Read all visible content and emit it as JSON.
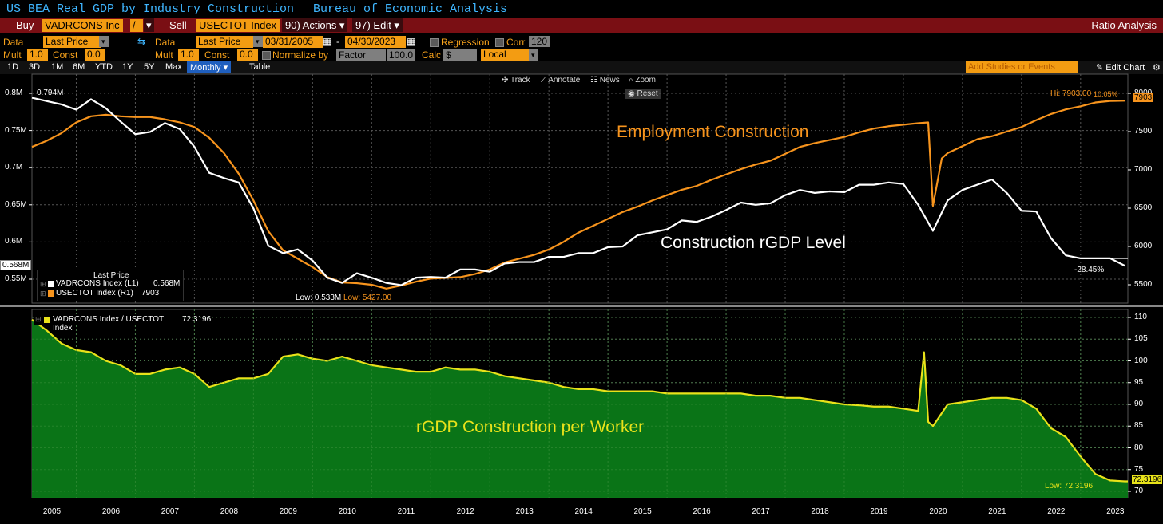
{
  "title": {
    "left": "US BEA Real GDP by Industry  Construction",
    "right": "Bureau of Economic Analysis"
  },
  "toolbar": {
    "buy": "Buy",
    "ticker1": "VADRCONS Inc",
    "op": "/",
    "sell": "Sell",
    "ticker2": "USECTOT Index",
    "actions": "90) Actions ▾",
    "edit": "97) Edit ▾",
    "ratio": "Ratio Analysis"
  },
  "params": {
    "data_label": "Data",
    "data_value": "Last Price",
    "data2_label": "Data",
    "data2_value": "Last Price",
    "date_from": "03/31/2005",
    "dash": "-",
    "date_to": "04/30/2023",
    "regression": "Regression",
    "corr": "Corr",
    "corr_value": "120",
    "mult_label": "Mult",
    "mult_value": "1.0",
    "const_label": "Const",
    "const_value": "0.0",
    "mult2_label": "Mult",
    "mult2_value": "1.0",
    "const2_label": "Const",
    "const2_value": "0.0",
    "normalize": "Normalize by",
    "factor": "Factor",
    "factor_value": "100.0",
    "calc": "Calc",
    "calc_value": "$",
    "local": "Local"
  },
  "periods": [
    "1D",
    "3D",
    "1M",
    "6M",
    "YTD",
    "1Y",
    "5Y",
    "Max"
  ],
  "freq": "Monthly ▾",
  "table": "Table",
  "studies": "Add Studies or Events",
  "edit_chart": "✎ Edit Chart",
  "tools": {
    "track": "Track",
    "annotate": "Annotate",
    "news": "News",
    "zoom": "Zoom",
    "reset": "Reset"
  },
  "legend_top": {
    "heading": "Last Price",
    "s1": "VADRCONS Index  (L1)",
    "s1_val": "0.568M",
    "s2": "USECTOT Index  (R1)",
    "s2_val": "7903"
  },
  "legend_bottom": {
    "s1": "VADRCONS Index / USECTOT Index",
    "s1_val": "72.3196"
  },
  "annotations": {
    "employment": "Employment Construction",
    "rgdp_level": "Construction rGDP Level",
    "per_worker": "rGDP Construction per Worker",
    "start_val": "0.794M",
    "hi": "Hi: 7903.00",
    "hi_pct": "10.05%",
    "low_left": "Low: 0.533M",
    "low_right": "Low: 5427.00",
    "pct_gdp": "-28.45%",
    "low_ratio": "Low: 72.3196",
    "last_left": "0.568M",
    "last_right": "7903",
    "last_ratio": "72.3196"
  },
  "colors": {
    "orange": "#f7941d",
    "white": "#ffffff",
    "green": "#0b7a18",
    "yellow": "#e8e21a",
    "grid": "#555555",
    "red": "#7a0f14"
  },
  "chart_data": [
    {
      "type": "line",
      "axes": {
        "left": {
          "ticks": [
            "0.8M",
            "0.75M",
            "0.7M",
            "0.65M",
            "0.6M",
            "0.55M"
          ],
          "values": [
            800000,
            750000,
            700000,
            650000,
            600000,
            550000
          ]
        },
        "right": {
          "ticks": [
            "8000",
            "7500",
            "7000",
            "6500",
            "6000",
            "5500"
          ],
          "values": [
            8000,
            7500,
            7000,
            6500,
            6000,
            5500
          ]
        }
      },
      "xlim": [
        2005.0,
        2023.55
      ],
      "series": [
        {
          "name": "VADRCONS Index  (L1)",
          "color": "#ffffff",
          "x": [
            2005.0,
            2005.5,
            2005.75,
            2006.0,
            2006.25,
            2006.5,
            2006.75,
            2007.0,
            2007.25,
            2007.5,
            2007.75,
            2008.0,
            2008.25,
            2008.5,
            2008.75,
            2009.0,
            2009.25,
            2009.5,
            2009.75,
            2010.0,
            2010.25,
            2010.5,
            2010.75,
            2011.0,
            2011.25,
            2011.5,
            2011.75,
            2012.0,
            2012.25,
            2012.5,
            2012.75,
            2013.0,
            2013.25,
            2013.5,
            2013.75,
            2014.0,
            2014.25,
            2014.5,
            2014.75,
            2015.0,
            2015.25,
            2015.5,
            2015.75,
            2016.0,
            2016.25,
            2016.5,
            2016.75,
            2017.0,
            2017.25,
            2017.5,
            2017.75,
            2018.0,
            2018.25,
            2018.5,
            2018.75,
            2019.0,
            2019.25,
            2019.5,
            2019.75,
            2020.0,
            2020.25,
            2020.5,
            2020.75,
            2021.0,
            2021.25,
            2021.5,
            2021.75,
            2022.0,
            2022.25,
            2022.5,
            2022.75,
            2023.0,
            2023.25,
            2023.5
          ],
          "values": [
            794000,
            785000,
            778000,
            792000,
            780000,
            762000,
            745000,
            748000,
            760000,
            752000,
            728000,
            693000,
            686000,
            680000,
            645000,
            595000,
            585000,
            590000,
            575000,
            552000,
            545000,
            558000,
            552000,
            545000,
            542000,
            552000,
            553000,
            552000,
            563000,
            563000,
            560000,
            571000,
            573000,
            573000,
            580000,
            580000,
            585000,
            585000,
            593000,
            594000,
            609000,
            613000,
            617000,
            629000,
            627000,
            634000,
            643000,
            653000,
            650000,
            652000,
            663000,
            670000,
            666000,
            668000,
            667000,
            677000,
            677000,
            680000,
            678000,
            650000,
            615000,
            656000,
            670000,
            677000,
            684000,
            666000,
            642000,
            641000,
            605000,
            582000,
            578000,
            578000,
            578000,
            568000
          ]
        },
        {
          "name": "USECTOT Index  (R1)",
          "color": "#f7941d",
          "x": [
            2005.0,
            2005.25,
            2005.5,
            2005.75,
            2006.0,
            2006.25,
            2006.5,
            2006.75,
            2007.0,
            2007.25,
            2007.5,
            2007.75,
            2008.0,
            2008.25,
            2008.5,
            2008.75,
            2009.0,
            2009.25,
            2009.5,
            2009.75,
            2010.0,
            2010.25,
            2010.5,
            2010.75,
            2011.0,
            2011.25,
            2011.5,
            2011.75,
            2012.0,
            2012.25,
            2012.5,
            2012.75,
            2013.0,
            2013.25,
            2013.5,
            2013.75,
            2014.0,
            2014.25,
            2014.5,
            2014.75,
            2015.0,
            2015.25,
            2015.5,
            2015.75,
            2016.0,
            2016.25,
            2016.5,
            2016.75,
            2017.0,
            2017.25,
            2017.5,
            2017.75,
            2018.0,
            2018.25,
            2018.5,
            2018.75,
            2019.0,
            2019.25,
            2019.5,
            2019.75,
            2020.0,
            2020.17,
            2020.25,
            2020.4,
            2020.5,
            2020.75,
            2021.0,
            2021.25,
            2021.5,
            2021.75,
            2022.0,
            2022.25,
            2022.5,
            2022.75,
            2023.0,
            2023.25,
            2023.5
          ],
          "values": [
            7300,
            7380,
            7480,
            7620,
            7700,
            7720,
            7700,
            7690,
            7690,
            7660,
            7620,
            7560,
            7420,
            7220,
            6950,
            6600,
            6200,
            5950,
            5840,
            5730,
            5600,
            5530,
            5520,
            5500,
            5450,
            5490,
            5540,
            5580,
            5590,
            5600,
            5640,
            5700,
            5790,
            5840,
            5890,
            5960,
            6060,
            6180,
            6270,
            6360,
            6450,
            6520,
            6600,
            6670,
            6740,
            6790,
            6870,
            6940,
            7010,
            7070,
            7120,
            7210,
            7300,
            7350,
            7390,
            7430,
            7490,
            7540,
            7570,
            7590,
            7610,
            7620,
            6530,
            7150,
            7220,
            7310,
            7400,
            7440,
            7500,
            7560,
            7650,
            7730,
            7790,
            7830,
            7880,
            7900,
            7903
          ]
        }
      ]
    },
    {
      "type": "area",
      "ylim": [
        70,
        112
      ],
      "axes": {
        "right": {
          "ticks": [
            "110",
            "105",
            "100",
            "95",
            "90",
            "85",
            "80",
            "75",
            "70"
          ],
          "values": [
            110,
            105,
            100,
            95,
            90,
            85,
            80,
            75,
            70
          ]
        }
      },
      "xlabels": [
        "2005",
        "2006",
        "2007",
        "2008",
        "2009",
        "2010",
        "2011",
        "2012",
        "2013",
        "2014",
        "2015",
        "2016",
        "2017",
        "2018",
        "2019",
        "2020",
        "2021",
        "2022",
        "2023"
      ],
      "series": [
        {
          "name": "VADRCONS Index / USECTOT Index",
          "color": "#e8e21a",
          "fill": "#0b7a18",
          "x": [
            2005.0,
            2005.25,
            2005.5,
            2005.75,
            2006.0,
            2006.25,
            2006.5,
            2006.75,
            2007.0,
            2007.25,
            2007.5,
            2007.75,
            2008.0,
            2008.25,
            2008.5,
            2008.75,
            2009.0,
            2009.25,
            2009.5,
            2009.75,
            2010.0,
            2010.25,
            2010.5,
            2010.75,
            2011.0,
            2011.25,
            2011.5,
            2011.75,
            2012.0,
            2012.25,
            2012.5,
            2012.75,
            2013.0,
            2013.25,
            2013.5,
            2013.75,
            2014.0,
            2014.25,
            2014.5,
            2014.75,
            2015.0,
            2015.25,
            2015.5,
            2015.75,
            2016.0,
            2016.25,
            2016.5,
            2016.75,
            2017.0,
            2017.25,
            2017.5,
            2017.75,
            2018.0,
            2018.25,
            2018.5,
            2018.75,
            2019.0,
            2019.25,
            2019.5,
            2019.75,
            2020.0,
            2020.1,
            2020.17,
            2020.25,
            2020.5,
            2020.75,
            2021.0,
            2021.25,
            2021.5,
            2021.75,
            2022.0,
            2022.25,
            2022.5,
            2022.75,
            2023.0,
            2023.25,
            2023.5
          ],
          "values": [
            109.5,
            107,
            104,
            102.5,
            102,
            100,
            99,
            97,
            97,
            98,
            98.5,
            97,
            94,
            95,
            96,
            96,
            97,
            101,
            101.5,
            100.5,
            100,
            101,
            100,
            99,
            98.5,
            98,
            97.5,
            97.5,
            98.5,
            98,
            98,
            97.5,
            96.5,
            96,
            95.5,
            95,
            94,
            93.5,
            93.5,
            93,
            93,
            93,
            93,
            92.5,
            92.5,
            92.5,
            92.5,
            92.5,
            92.5,
            92,
            92,
            91.5,
            91.5,
            91,
            90.5,
            90,
            89.8,
            89.5,
            89.5,
            89,
            88.5,
            102,
            86,
            85,
            90,
            90.5,
            91,
            91.5,
            91.5,
            91,
            89,
            84.5,
            82.5,
            78,
            74,
            72.5,
            72.3
          ]
        }
      ]
    }
  ]
}
